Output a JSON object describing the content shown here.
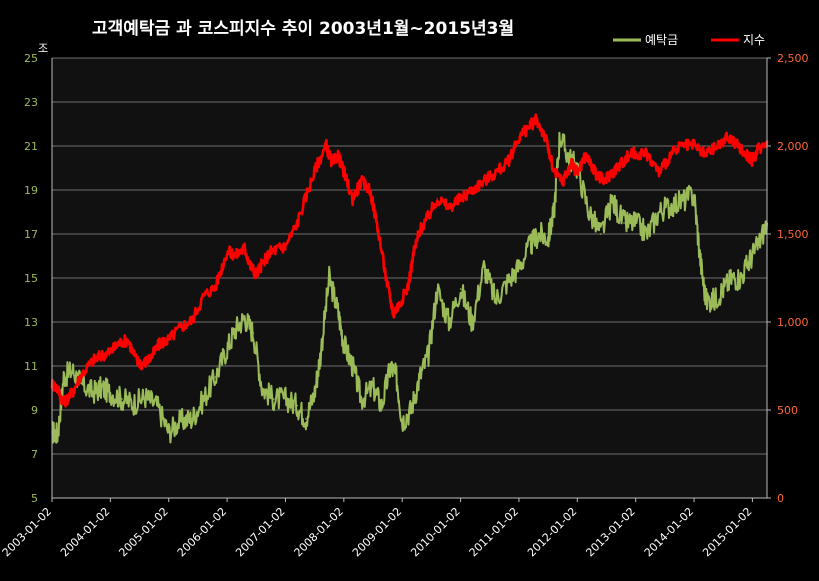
{
  "chart_data": {
    "type": "line",
    "title": "고객예탁금 과 코스피지수 추이  2003년1월~2015년3월",
    "y_left_unit": "조",
    "y_left_range": [
      5,
      25
    ],
    "y_left_ticks": [
      "5",
      "7",
      "9",
      "11",
      "13",
      "15",
      "17",
      "19",
      "21",
      "23",
      "25"
    ],
    "y_right_range": [
      0,
      2500
    ],
    "y_right_ticks": [
      "0",
      "500",
      "1,000",
      "1,500",
      "2,000",
      "2,500"
    ],
    "x_ticks": [
      "2003-01-02",
      "2004-01-02",
      "2005-01-02",
      "2006-01-02",
      "2007-01-02",
      "2008-01-02",
      "2009-01-02",
      "2010-01-02",
      "2011-01-02",
      "2012-01-02",
      "2013-01-02",
      "2014-01-02",
      "2015-01-02"
    ],
    "x_range": [
      2003.0,
      2015.25
    ],
    "grid": true,
    "legend_position": "top-right",
    "series": [
      {
        "name": "예탁금",
        "axis": "left",
        "color": "#9bbb59",
        "x": [
          2003.0,
          2003.1,
          2003.2,
          2003.35,
          2003.5,
          2003.7,
          2003.85,
          2004.0,
          2004.2,
          2004.4,
          2004.6,
          2004.8,
          2005.0,
          2005.2,
          2005.4,
          2005.6,
          2005.8,
          2006.0,
          2006.15,
          2006.3,
          2006.45,
          2006.6,
          2006.8,
          2007.0,
          2007.2,
          2007.35,
          2007.5,
          2007.6,
          2007.75,
          2007.9,
          2008.0,
          2008.15,
          2008.3,
          2008.5,
          2008.65,
          2008.8,
          2008.9,
          2009.0,
          2009.15,
          2009.3,
          2009.45,
          2009.6,
          2009.8,
          2010.0,
          2010.2,
          2010.4,
          2010.6,
          2010.8,
          2011.0,
          2011.2,
          2011.35,
          2011.5,
          2011.6,
          2011.7,
          2011.85,
          2012.0,
          2012.2,
          2012.4,
          2012.6,
          2012.8,
          2013.0,
          2013.2,
          2013.4,
          2013.6,
          2013.8,
          2014.0,
          2014.1,
          2014.2,
          2014.35,
          2014.5,
          2014.65,
          2014.8,
          2014.95,
          2015.1,
          2015.25
        ],
        "values": [
          8.0,
          7.9,
          10.5,
          10.8,
          10.2,
          9.8,
          10.0,
          9.8,
          9.5,
          9.3,
          9.6,
          9.2,
          8.0,
          8.5,
          8.6,
          9.5,
          10.5,
          11.8,
          12.7,
          13.2,
          12.5,
          10.0,
          9.5,
          9.5,
          9.2,
          8.6,
          9.8,
          11.5,
          15.0,
          13.5,
          12.0,
          11.0,
          9.5,
          10.0,
          9.2,
          11.0,
          10.5,
          8.5,
          9.0,
          10.5,
          11.5,
          14.5,
          13.0,
          14.5,
          13.0,
          15.5,
          14.0,
          14.8,
          15.5,
          16.5,
          17.0,
          16.8,
          18.0,
          21.5,
          20.5,
          20.0,
          18.0,
          17.0,
          18.5,
          17.5,
          17.5,
          17.0,
          18.0,
          18.3,
          18.5,
          18.8,
          16.0,
          14.0,
          14.0,
          14.5,
          15.0,
          15.0,
          15.8,
          16.5,
          17.5
        ]
      },
      {
        "name": "지수",
        "axis": "right",
        "color": "#ff0000",
        "x": [
          2003.0,
          2003.1,
          2003.2,
          2003.35,
          2003.5,
          2003.7,
          2003.85,
          2004.0,
          2004.15,
          2004.3,
          2004.45,
          2004.55,
          2004.7,
          2004.85,
          2005.0,
          2005.2,
          2005.4,
          2005.6,
          2005.8,
          2006.0,
          2006.15,
          2006.3,
          2006.4,
          2006.5,
          2006.6,
          2006.75,
          2006.9,
          2007.0,
          2007.2,
          2007.4,
          2007.55,
          2007.7,
          2007.8,
          2007.9,
          2008.0,
          2008.15,
          2008.3,
          2008.45,
          2008.6,
          2008.75,
          2008.85,
          2008.95,
          2009.1,
          2009.2,
          2009.3,
          2009.45,
          2009.6,
          2009.8,
          2010.0,
          2010.2,
          2010.4,
          2010.6,
          2010.8,
          2011.0,
          2011.15,
          2011.3,
          2011.45,
          2011.6,
          2011.75,
          2011.9,
          2012.0,
          2012.15,
          2012.3,
          2012.45,
          2012.6,
          2012.75,
          2012.9,
          2013.0,
          2013.2,
          2013.4,
          2013.6,
          2013.8,
          2014.0,
          2014.2,
          2014.4,
          2014.6,
          2014.75,
          2014.9,
          2015.0,
          2015.1,
          2015.25
        ],
        "values": [
          650,
          620,
          540,
          600,
          700,
          780,
          810,
          830,
          880,
          900,
          780,
          760,
          800,
          880,
          900,
          970,
          1010,
          1150,
          1200,
          1400,
          1380,
          1420,
          1320,
          1270,
          1330,
          1400,
          1420,
          1430,
          1560,
          1760,
          1900,
          2000,
          1900,
          1950,
          1850,
          1700,
          1800,
          1750,
          1500,
          1200,
          1050,
          1100,
          1200,
          1400,
          1520,
          1600,
          1700,
          1650,
          1700,
          1750,
          1800,
          1850,
          1900,
          2050,
          2100,
          2150,
          2050,
          1850,
          1800,
          1900,
          1850,
          1950,
          1850,
          1800,
          1850,
          1900,
          1950,
          1960,
          1950,
          1850,
          1950,
          2000,
          2000,
          1950,
          2000,
          2050,
          2000,
          1950,
          1920,
          1980,
          2030
        ]
      }
    ]
  }
}
